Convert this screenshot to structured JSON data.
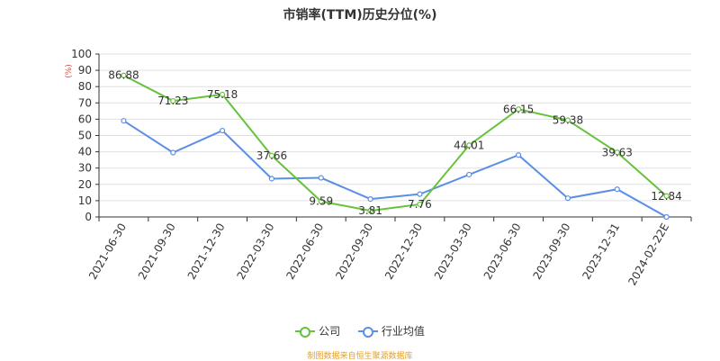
{
  "title": "市销率(TTM)历史分位(%)",
  "source": "制图数据来自恒生聚源数据库",
  "chart_data": {
    "type": "line",
    "title": "市销率(TTM)历史分位(%)",
    "ylabel": "(%)",
    "xlabel": "",
    "ylim": [
      0,
      100
    ],
    "yticks": [
      0,
      10,
      20,
      30,
      40,
      50,
      60,
      70,
      80,
      90,
      100
    ],
    "categories": [
      "2021-06-30",
      "2021-09-30",
      "2021-12-30",
      "2022-03-30",
      "2022-06-30",
      "2022-09-30",
      "2022-12-30",
      "2023-03-30",
      "2023-06-30",
      "2023-09-30",
      "2023-12-31",
      "2024-02-22E"
    ],
    "series": [
      {
        "name": "公司",
        "color": "#66c23a",
        "values": [
          86.88,
          71.23,
          75.18,
          37.66,
          9.59,
          3.81,
          7.76,
          44.01,
          66.15,
          59.38,
          39.63,
          12.84
        ],
        "labels": [
          "86.88",
          "71.23",
          "75.18",
          "37.66",
          "9.59",
          "3.81",
          "7.76",
          "44.01",
          "66.15",
          "59.38",
          "39.63",
          "12.84"
        ]
      },
      {
        "name": "行业均值",
        "color": "#5b8ee6",
        "values": [
          59,
          39.5,
          53,
          23.5,
          24,
          11,
          14,
          26,
          38,
          11.5,
          17,
          0
        ]
      }
    ],
    "grid": true,
    "legend": "bottom-center"
  }
}
